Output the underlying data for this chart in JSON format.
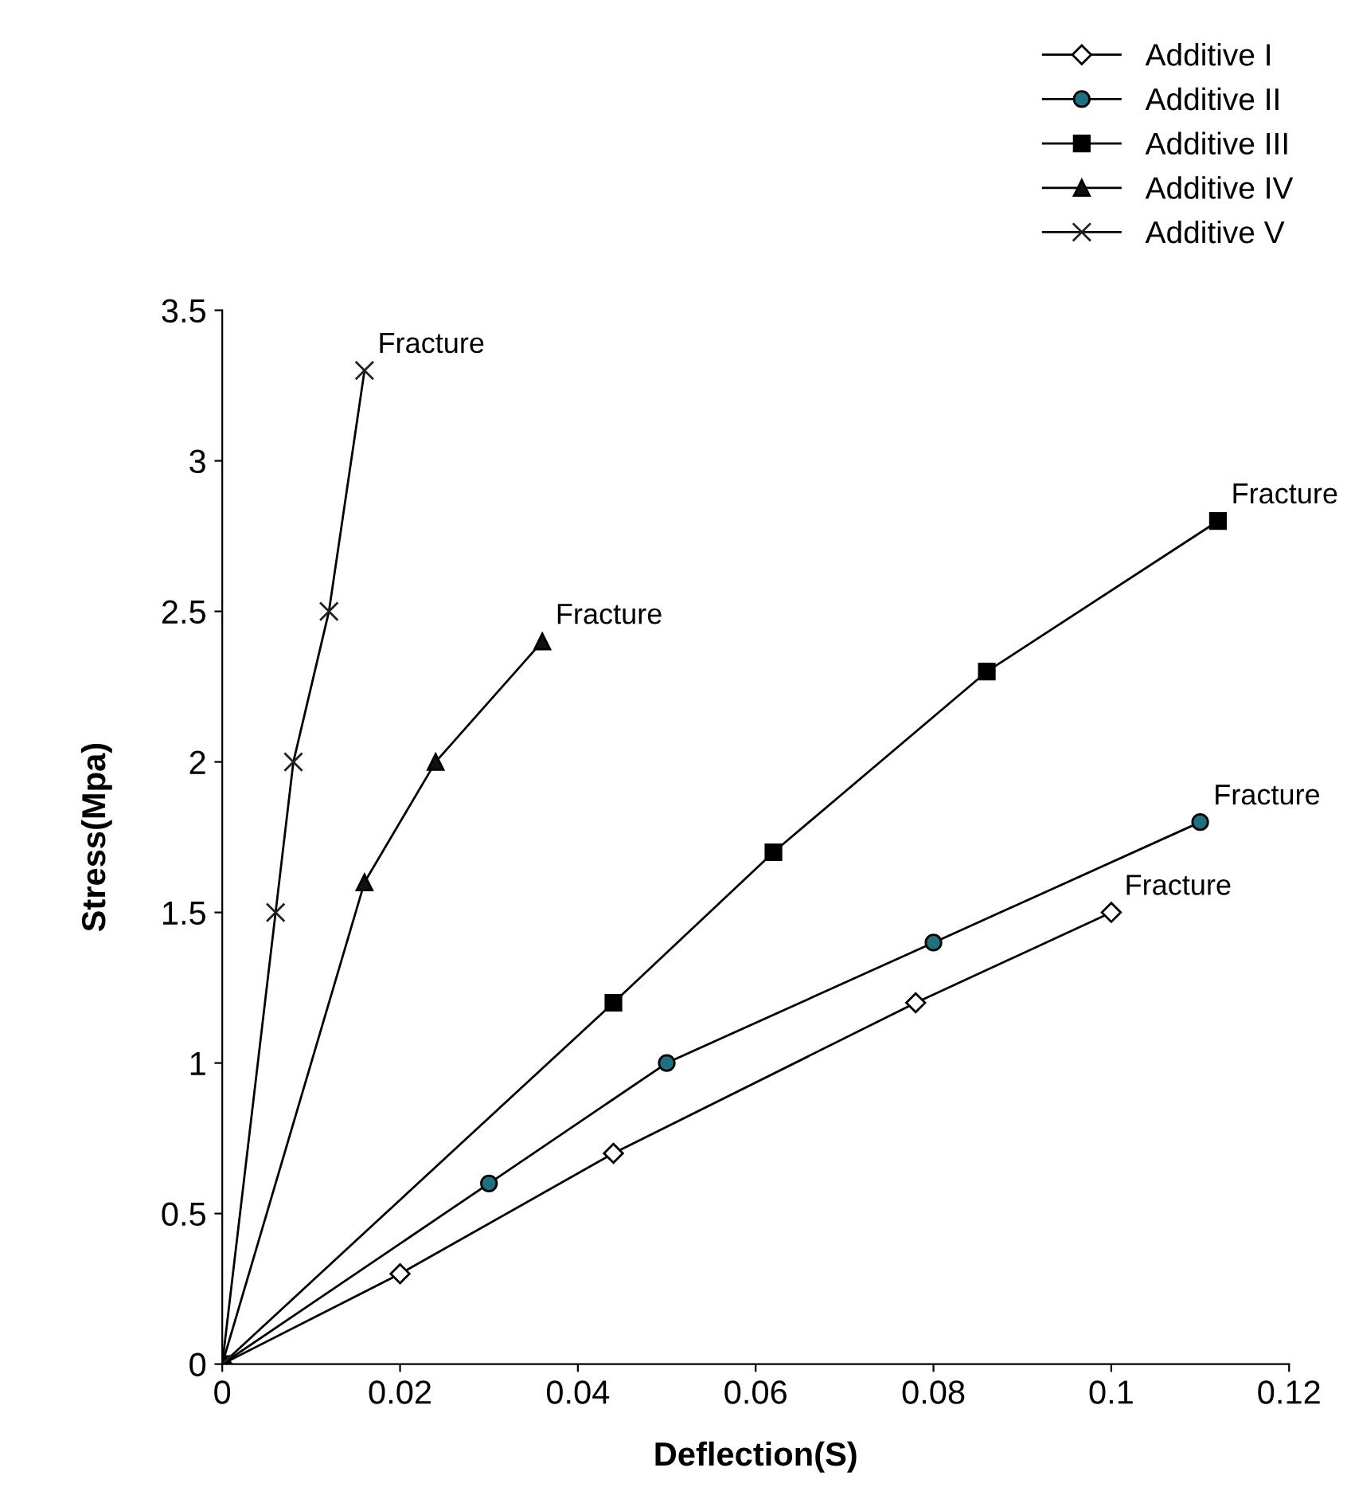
{
  "chart_data": {
    "type": "line",
    "xlabel": "Deflection(S)",
    "ylabel": "Stress(Mpa)",
    "xlim": [
      0,
      0.12
    ],
    "ylim": [
      0,
      3.5
    ],
    "xticks": [
      0,
      0.02,
      0.04,
      0.06,
      0.08,
      0.1,
      0.12
    ],
    "yticks": [
      0,
      0.5,
      1,
      1.5,
      2,
      2.5,
      3,
      3.5
    ],
    "grid": false,
    "legend": "top right",
    "line_style": "solid",
    "series": [
      {
        "name": "Additive I",
        "color": "#ffffff",
        "marker": "diamond",
        "x": [
          0,
          0.02,
          0.044,
          0.078,
          0.1
        ],
        "values": [
          0,
          0.3,
          0.7,
          1.2,
          1.5
        ]
      },
      {
        "name": "Additive II",
        "color": "#1f7080",
        "marker": "circle",
        "x": [
          0,
          0.03,
          0.05,
          0.08,
          0.11
        ],
        "values": [
          0,
          0.6,
          1.0,
          1.4,
          1.8
        ]
      },
      {
        "name": "Additive III",
        "color": "#000000",
        "marker": "square",
        "x": [
          0,
          0.044,
          0.062,
          0.086,
          0.112
        ],
        "values": [
          0,
          1.2,
          1.7,
          2.3,
          2.8
        ]
      },
      {
        "name": "Additive IV",
        "color": "#111111",
        "marker": "triangle",
        "x": [
          0,
          0.016,
          0.024,
          0.036
        ],
        "values": [
          0,
          1.6,
          2.0,
          2.4
        ]
      },
      {
        "name": "Additive V",
        "color": "#222222",
        "marker": "cross",
        "x": [
          0,
          0.006,
          0.008,
          0.012,
          0.016
        ],
        "values": [
          0,
          1.5,
          2.0,
          2.5,
          3.3
        ]
      }
    ],
    "annotations": [
      {
        "text": "Fracture",
        "x": 0.1,
        "y": 1.5
      },
      {
        "text": "Fracture",
        "x": 0.11,
        "y": 1.8
      },
      {
        "text": "Fracture",
        "x": 0.112,
        "y": 2.8
      },
      {
        "text": "Fracture",
        "x": 0.036,
        "y": 2.4
      },
      {
        "text": "Fracture",
        "x": 0.016,
        "y": 3.3
      }
    ]
  }
}
